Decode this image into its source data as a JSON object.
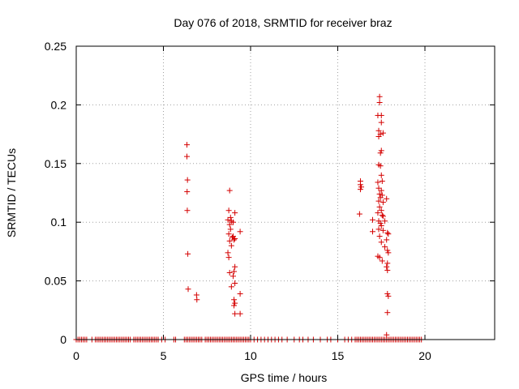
{
  "chart_data": {
    "type": "scatter",
    "title": "Day 076 of 2018, SRMTID for receiver braz",
    "xlabel": "GPS time / hours",
    "ylabel": "SRMTID / TECUs",
    "xlim": [
      0,
      24
    ],
    "ylim": [
      0,
      0.25
    ],
    "x_ticks": [
      0,
      5,
      10,
      15,
      20
    ],
    "x_tick_labels": [
      "0",
      "5",
      "10",
      "15",
      "20"
    ],
    "y_ticks": [
      0,
      0.05,
      0.1,
      0.15,
      0.2,
      0.25
    ],
    "y_tick_labels": [
      "0",
      "0.05",
      "0.1",
      "0.15",
      "0.2",
      "0.25"
    ],
    "grid": true,
    "marker": "+",
    "colors": {
      "series": "#d40000",
      "grid": "#a0a0a0",
      "frame": "#000000"
    },
    "series": [
      {
        "name": "SRMTID",
        "points": [
          [
            6.35,
            0.166
          ],
          [
            6.35,
            0.156
          ],
          [
            6.38,
            0.136
          ],
          [
            6.36,
            0.126
          ],
          [
            6.37,
            0.11
          ],
          [
            6.4,
            0.073
          ],
          [
            6.42,
            0.043
          ],
          [
            6.9,
            0.038
          ],
          [
            6.92,
            0.034
          ],
          [
            8.8,
            0.127
          ],
          [
            8.75,
            0.11
          ],
          [
            8.85,
            0.104
          ],
          [
            8.7,
            0.102
          ],
          [
            8.9,
            0.101
          ],
          [
            8.8,
            0.098
          ],
          [
            8.85,
            0.094
          ],
          [
            8.75,
            0.09
          ],
          [
            8.95,
            0.087
          ],
          [
            9.1,
            0.086
          ],
          [
            8.8,
            0.084
          ],
          [
            8.9,
            0.08
          ],
          [
            8.7,
            0.074
          ],
          [
            8.75,
            0.07
          ],
          [
            9.1,
            0.108
          ],
          [
            9.0,
            0.1
          ],
          [
            9.4,
            0.092
          ],
          [
            9.0,
            0.088
          ],
          [
            9.05,
            0.085
          ],
          [
            9.1,
            0.062
          ],
          [
            9.05,
            0.058
          ],
          [
            8.8,
            0.057
          ],
          [
            9.0,
            0.054
          ],
          [
            9.1,
            0.048
          ],
          [
            8.9,
            0.045
          ],
          [
            9.4,
            0.039
          ],
          [
            9.05,
            0.034
          ],
          [
            9.1,
            0.031
          ],
          [
            9.05,
            0.029
          ],
          [
            9.1,
            0.022
          ],
          [
            9.4,
            0.022
          ],
          [
            16.3,
            0.135
          ],
          [
            16.3,
            0.132
          ],
          [
            16.35,
            0.13
          ],
          [
            16.3,
            0.128
          ],
          [
            16.25,
            0.107
          ],
          [
            17.4,
            0.207
          ],
          [
            17.4,
            0.202
          ],
          [
            17.3,
            0.191
          ],
          [
            17.5,
            0.191
          ],
          [
            17.5,
            0.185
          ],
          [
            17.35,
            0.178
          ],
          [
            17.45,
            0.175
          ],
          [
            17.6,
            0.176
          ],
          [
            17.35,
            0.173
          ],
          [
            17.5,
            0.161
          ],
          [
            17.45,
            0.159
          ],
          [
            17.35,
            0.149
          ],
          [
            17.45,
            0.148
          ],
          [
            17.5,
            0.14
          ],
          [
            17.3,
            0.134
          ],
          [
            17.55,
            0.135
          ],
          [
            17.35,
            0.129
          ],
          [
            17.5,
            0.127
          ],
          [
            17.4,
            0.124
          ],
          [
            17.55,
            0.123
          ],
          [
            17.45,
            0.121
          ],
          [
            17.35,
            0.118
          ],
          [
            17.6,
            0.117
          ],
          [
            17.8,
            0.12
          ],
          [
            17.4,
            0.113
          ],
          [
            17.5,
            0.11
          ],
          [
            17.3,
            0.108
          ],
          [
            17.55,
            0.106
          ],
          [
            17.6,
            0.105
          ],
          [
            17.0,
            0.102
          ],
          [
            17.35,
            0.101
          ],
          [
            17.7,
            0.101
          ],
          [
            17.45,
            0.099
          ],
          [
            17.5,
            0.097
          ],
          [
            17.35,
            0.094
          ],
          [
            17.6,
            0.093
          ],
          [
            17.0,
            0.092
          ],
          [
            17.85,
            0.091
          ],
          [
            17.9,
            0.09
          ],
          [
            17.4,
            0.088
          ],
          [
            17.8,
            0.085
          ],
          [
            17.5,
            0.083
          ],
          [
            17.7,
            0.079
          ],
          [
            17.85,
            0.076
          ],
          [
            17.9,
            0.074
          ],
          [
            17.3,
            0.071
          ],
          [
            17.4,
            0.07
          ],
          [
            17.55,
            0.067
          ],
          [
            17.85,
            0.065
          ],
          [
            17.8,
            0.062
          ],
          [
            17.85,
            0.059
          ],
          [
            17.85,
            0.039
          ],
          [
            17.9,
            0.037
          ],
          [
            17.85,
            0.023
          ],
          [
            17.8,
            0.004
          ]
        ],
        "zero_x": [
          0.0,
          0.1,
          0.2,
          0.3,
          0.4,
          0.5,
          0.6,
          0.9,
          1.1,
          1.2,
          1.3,
          1.4,
          1.5,
          1.6,
          1.7,
          1.8,
          1.9,
          2.0,
          2.1,
          2.2,
          2.3,
          2.4,
          2.5,
          2.6,
          2.7,
          2.8,
          2.9,
          3.0,
          3.1,
          3.3,
          3.4,
          3.5,
          3.6,
          3.7,
          3.8,
          3.9,
          4.0,
          4.1,
          4.2,
          4.3,
          4.4,
          4.5,
          4.6,
          4.7,
          4.9,
          5.1,
          5.6,
          5.7,
          6.2,
          6.3,
          6.4,
          6.5,
          6.6,
          6.7,
          6.8,
          6.9,
          7.0,
          7.1,
          7.2,
          7.4,
          7.5,
          7.6,
          7.7,
          7.8,
          7.9,
          8.0,
          8.1,
          8.2,
          8.3,
          8.4,
          8.5,
          8.6,
          8.7,
          8.8,
          8.9,
          9.0,
          9.1,
          9.2,
          9.3,
          9.4,
          9.5,
          9.6,
          9.7,
          9.8,
          9.9,
          10.0,
          10.2,
          10.4,
          10.6,
          10.8,
          11.0,
          11.2,
          11.4,
          11.6,
          11.8,
          12.1,
          12.5,
          12.8,
          13.0,
          13.3,
          13.6,
          14.0,
          14.4,
          14.6,
          15.0,
          15.4,
          15.6,
          15.8,
          16.0,
          16.1,
          16.2,
          16.3,
          16.4,
          16.5,
          16.6,
          16.7,
          16.8,
          16.9,
          17.0,
          17.1,
          17.2,
          17.3,
          17.4,
          17.5,
          17.6,
          17.7,
          17.8,
          17.9,
          18.0,
          18.1,
          18.2,
          18.3,
          18.4,
          18.5,
          18.6,
          18.7,
          18.8,
          18.9,
          19.0,
          19.1,
          19.2,
          19.3,
          19.4,
          19.5,
          19.6,
          19.7,
          19.8
        ]
      }
    ]
  }
}
